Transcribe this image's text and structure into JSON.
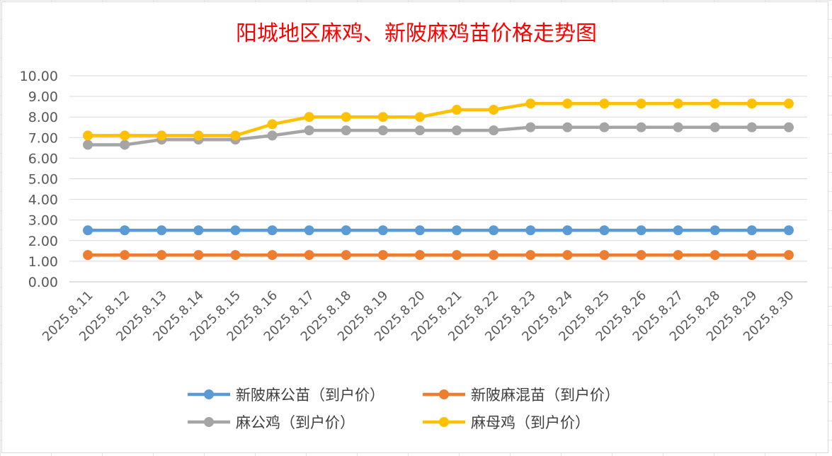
{
  "chart_data": {
    "type": "line",
    "title": "阳城地区麻鸡、新陂麻鸡苗价格走势图",
    "xlabel": "",
    "ylabel": "",
    "ylim": [
      0,
      10
    ],
    "yticks": [
      "0.00",
      "1.00",
      "2.00",
      "3.00",
      "4.00",
      "5.00",
      "6.00",
      "7.00",
      "8.00",
      "9.00",
      "10.00"
    ],
    "grid": true,
    "legend_position": "bottom",
    "categories": [
      "2025.8.11",
      "2025.8.12",
      "2025.8.13",
      "2025.8.14",
      "2025.8.15",
      "2025.8.16",
      "2025.8.17",
      "2025.8.18",
      "2025.8.19",
      "2025.8.20",
      "2025.8.21",
      "2025.8.22",
      "2025.8.23",
      "2025.8.24",
      "2025.8.25",
      "2025.8.26",
      "2025.8.27",
      "2025.8.28",
      "2025.8.29",
      "2025.8.30"
    ],
    "series": [
      {
        "name": "新陂麻公苗（到户价）",
        "color": "#5b9bd5",
        "values": [
          2.5,
          2.5,
          2.5,
          2.5,
          2.5,
          2.5,
          2.5,
          2.5,
          2.5,
          2.5,
          2.5,
          2.5,
          2.5,
          2.5,
          2.5,
          2.5,
          2.5,
          2.5,
          2.5,
          2.5
        ]
      },
      {
        "name": "新陂麻混苗（到户价）",
        "color": "#ed7d31",
        "values": [
          1.3,
          1.3,
          1.3,
          1.3,
          1.3,
          1.3,
          1.3,
          1.3,
          1.3,
          1.3,
          1.3,
          1.3,
          1.3,
          1.3,
          1.3,
          1.3,
          1.3,
          1.3,
          1.3,
          1.3
        ]
      },
      {
        "name": "麻公鸡（到户价）",
        "color": "#a5a5a5",
        "values": [
          6.65,
          6.65,
          6.9,
          6.9,
          6.9,
          7.1,
          7.35,
          7.35,
          7.35,
          7.35,
          7.35,
          7.35,
          7.5,
          7.5,
          7.5,
          7.5,
          7.5,
          7.5,
          7.5,
          7.5
        ]
      },
      {
        "name": "麻母鸡（到户价）",
        "color": "#ffc000",
        "values": [
          7.1,
          7.1,
          7.1,
          7.1,
          7.1,
          7.65,
          8.0,
          8.0,
          8.0,
          8.0,
          8.35,
          8.35,
          8.65,
          8.65,
          8.65,
          8.65,
          8.65,
          8.65,
          8.65,
          8.65
        ]
      }
    ]
  }
}
